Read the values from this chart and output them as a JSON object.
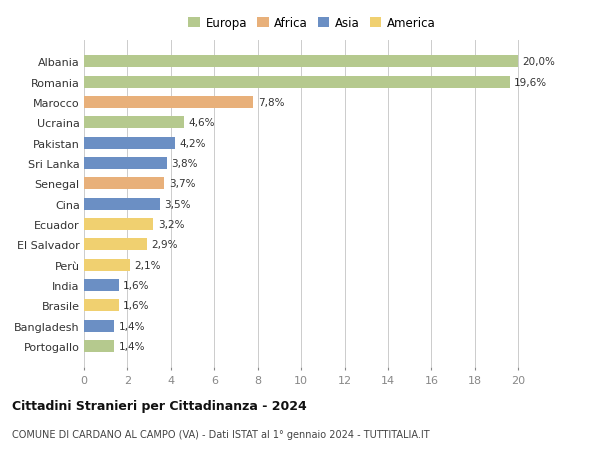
{
  "countries": [
    "Albania",
    "Romania",
    "Marocco",
    "Ucraina",
    "Pakistan",
    "Sri Lanka",
    "Senegal",
    "Cina",
    "Ecuador",
    "El Salvador",
    "Perù",
    "India",
    "Brasile",
    "Bangladesh",
    "Portogallo"
  ],
  "values": [
    20.0,
    19.6,
    7.8,
    4.6,
    4.2,
    3.8,
    3.7,
    3.5,
    3.2,
    2.9,
    2.1,
    1.6,
    1.6,
    1.4,
    1.4
  ],
  "labels": [
    "20,0%",
    "19,6%",
    "7,8%",
    "4,6%",
    "4,2%",
    "3,8%",
    "3,7%",
    "3,5%",
    "3,2%",
    "2,9%",
    "2,1%",
    "1,6%",
    "1,6%",
    "1,4%",
    "1,4%"
  ],
  "continents": [
    "Europa",
    "Europa",
    "Africa",
    "Europa",
    "Asia",
    "Asia",
    "Africa",
    "Asia",
    "America",
    "America",
    "America",
    "Asia",
    "America",
    "Asia",
    "Europa"
  ],
  "colors": {
    "Europa": "#b5c98e",
    "Africa": "#e8b07a",
    "Asia": "#6b8fc4",
    "America": "#f0d070"
  },
  "legend_order": [
    "Europa",
    "Africa",
    "Asia",
    "America"
  ],
  "title": "Cittadini Stranieri per Cittadinanza - 2024",
  "subtitle": "COMUNE DI CARDANO AL CAMPO (VA) - Dati ISTAT al 1° gennaio 2024 - TUTTITALIA.IT",
  "xlim": [
    0,
    21
  ],
  "xticks": [
    0,
    2,
    4,
    6,
    8,
    10,
    12,
    14,
    16,
    18,
    20
  ],
  "bg_color": "#ffffff",
  "grid_color": "#cccccc"
}
